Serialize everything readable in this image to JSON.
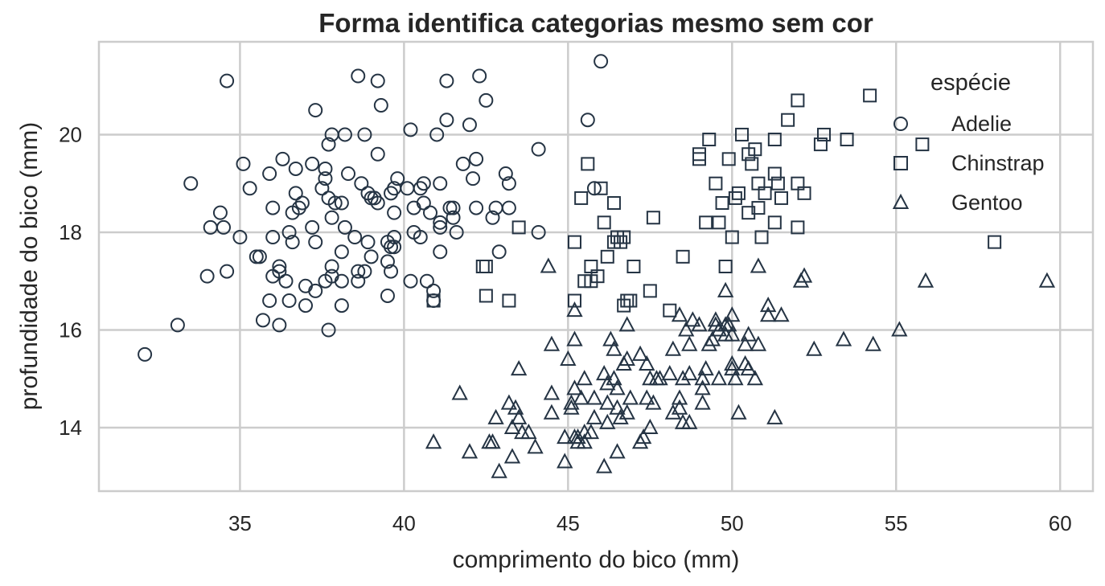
{
  "chart_data": {
    "type": "scatter",
    "title": "Forma identifica categorias mesmo sem cor",
    "xlabel": "comprimento do bico (mm)",
    "ylabel": "profundidade do bico (mm)",
    "xlim": [
      30.7,
      61.0
    ],
    "ylim": [
      12.7,
      21.9
    ],
    "xticks": [
      35,
      40,
      45,
      50,
      55,
      60
    ],
    "yticks": [
      14,
      16,
      18,
      20
    ],
    "grid": true,
    "legend": {
      "title": "espécie",
      "placement": "top-right"
    },
    "marker_color": "#253444",
    "series": [
      {
        "name": "Adelie",
        "marker": "circle",
        "points": [
          [
            32.1,
            15.5
          ],
          [
            33.1,
            16.1
          ],
          [
            33.5,
            19.0
          ],
          [
            34.0,
            17.1
          ],
          [
            34.1,
            18.1
          ],
          [
            34.4,
            18.4
          ],
          [
            34.5,
            18.1
          ],
          [
            34.6,
            21.1
          ],
          [
            34.6,
            17.2
          ],
          [
            35.0,
            17.9
          ],
          [
            35.1,
            19.4
          ],
          [
            35.3,
            18.9
          ],
          [
            35.5,
            17.5
          ],
          [
            35.6,
            17.5
          ],
          [
            35.7,
            16.2
          ],
          [
            35.9,
            16.6
          ],
          [
            35.9,
            19.2
          ],
          [
            36.0,
            17.9
          ],
          [
            36.0,
            17.1
          ],
          [
            36.0,
            18.5
          ],
          [
            36.2,
            17.2
          ],
          [
            36.2,
            17.3
          ],
          [
            36.2,
            16.1
          ],
          [
            36.3,
            19.5
          ],
          [
            36.4,
            17.0
          ],
          [
            36.5,
            16.6
          ],
          [
            36.5,
            18.0
          ],
          [
            36.6,
            17.8
          ],
          [
            36.6,
            18.4
          ],
          [
            36.7,
            19.3
          ],
          [
            36.7,
            18.8
          ],
          [
            36.8,
            18.5
          ],
          [
            36.9,
            18.6
          ],
          [
            37.0,
            16.9
          ],
          [
            37.0,
            16.5
          ],
          [
            37.2,
            18.1
          ],
          [
            37.2,
            19.4
          ],
          [
            37.3,
            17.8
          ],
          [
            37.3,
            16.8
          ],
          [
            37.3,
            20.5
          ],
          [
            37.5,
            18.9
          ],
          [
            37.6,
            19.1
          ],
          [
            37.6,
            17.0
          ],
          [
            37.6,
            19.3
          ],
          [
            37.7,
            18.7
          ],
          [
            37.7,
            19.8
          ],
          [
            37.7,
            16.0
          ],
          [
            37.8,
            17.1
          ],
          [
            37.8,
            17.3
          ],
          [
            37.8,
            18.3
          ],
          [
            37.8,
            20.0
          ],
          [
            37.9,
            18.6
          ],
          [
            38.1,
            18.6
          ],
          [
            38.1,
            17.0
          ],
          [
            38.1,
            16.5
          ],
          [
            38.1,
            17.6
          ],
          [
            38.2,
            18.1
          ],
          [
            38.2,
            20.0
          ],
          [
            38.3,
            19.2
          ],
          [
            38.5,
            17.9
          ],
          [
            38.6,
            21.2
          ],
          [
            38.6,
            17.2
          ],
          [
            38.6,
            17.0
          ],
          [
            38.7,
            19.0
          ],
          [
            38.8,
            17.2
          ],
          [
            38.8,
            20.0
          ],
          [
            38.9,
            18.8
          ],
          [
            38.9,
            17.8
          ],
          [
            39.0,
            17.5
          ],
          [
            39.0,
            18.7
          ],
          [
            39.1,
            18.7
          ],
          [
            39.2,
            18.6
          ],
          [
            39.2,
            21.1
          ],
          [
            39.2,
            19.6
          ],
          [
            39.3,
            20.6
          ],
          [
            39.5,
            16.7
          ],
          [
            39.5,
            17.4
          ],
          [
            39.5,
            17.8
          ],
          [
            39.6,
            17.7
          ],
          [
            39.6,
            18.8
          ],
          [
            39.6,
            17.2
          ],
          [
            39.7,
            18.4
          ],
          [
            39.7,
            17.7
          ],
          [
            39.7,
            18.9
          ],
          [
            39.7,
            17.9
          ],
          [
            39.8,
            19.1
          ],
          [
            40.1,
            18.9
          ],
          [
            40.2,
            17.0
          ],
          [
            40.2,
            20.1
          ],
          [
            40.3,
            18.0
          ],
          [
            40.3,
            18.5
          ],
          [
            40.5,
            17.9
          ],
          [
            40.5,
            18.9
          ],
          [
            40.6,
            18.6
          ],
          [
            40.6,
            19.0
          ],
          [
            40.7,
            17.0
          ],
          [
            40.8,
            18.4
          ],
          [
            40.9,
            16.6
          ],
          [
            40.9,
            16.8
          ],
          [
            41.0,
            20.0
          ],
          [
            41.1,
            17.6
          ],
          [
            41.1,
            18.2
          ],
          [
            41.1,
            19.0
          ],
          [
            41.1,
            18.1
          ],
          [
            41.3,
            20.3
          ],
          [
            41.3,
            21.1
          ],
          [
            41.4,
            18.5
          ],
          [
            41.5,
            18.3
          ],
          [
            41.5,
            18.5
          ],
          [
            41.6,
            18.0
          ],
          [
            41.8,
            19.4
          ],
          [
            42.0,
            20.2
          ],
          [
            42.1,
            19.1
          ],
          [
            42.2,
            18.5
          ],
          [
            42.2,
            19.5
          ],
          [
            42.3,
            21.2
          ],
          [
            42.5,
            20.7
          ],
          [
            42.7,
            18.3
          ],
          [
            42.8,
            18.5
          ],
          [
            42.9,
            17.6
          ],
          [
            43.1,
            19.2
          ],
          [
            43.2,
            18.5
          ],
          [
            43.2,
            19.0
          ],
          [
            44.1,
            18.0
          ],
          [
            44.1,
            19.7
          ],
          [
            45.6,
            20.3
          ],
          [
            45.8,
            18.9
          ],
          [
            46.0,
            21.5
          ]
        ]
      },
      {
        "name": "Chinstrap",
        "marker": "square",
        "points": [
          [
            40.9,
            16.6
          ],
          [
            42.4,
            17.3
          ],
          [
            42.5,
            16.7
          ],
          [
            42.5,
            17.3
          ],
          [
            43.2,
            16.6
          ],
          [
            43.5,
            18.1
          ],
          [
            45.2,
            17.8
          ],
          [
            45.2,
            16.6
          ],
          [
            45.4,
            18.7
          ],
          [
            45.5,
            17.0
          ],
          [
            45.6,
            19.4
          ],
          [
            45.7,
            17.0
          ],
          [
            45.7,
            17.3
          ],
          [
            45.9,
            17.1
          ],
          [
            46.0,
            18.9
          ],
          [
            46.1,
            18.2
          ],
          [
            46.2,
            17.5
          ],
          [
            46.4,
            18.6
          ],
          [
            46.4,
            17.8
          ],
          [
            46.5,
            17.9
          ],
          [
            46.6,
            17.8
          ],
          [
            46.7,
            17.9
          ],
          [
            46.7,
            16.5
          ],
          [
            46.8,
            16.6
          ],
          [
            46.9,
            16.6
          ],
          [
            47.0,
            17.3
          ],
          [
            47.5,
            16.8
          ],
          [
            47.6,
            18.3
          ],
          [
            48.1,
            16.4
          ],
          [
            48.5,
            17.5
          ],
          [
            49.0,
            19.5
          ],
          [
            49.0,
            19.6
          ],
          [
            49.2,
            18.2
          ],
          [
            49.3,
            19.9
          ],
          [
            49.5,
            19.0
          ],
          [
            49.6,
            18.2
          ],
          [
            49.7,
            18.6
          ],
          [
            49.8,
            17.3
          ],
          [
            49.9,
            19.5
          ],
          [
            50.0,
            17.9
          ],
          [
            50.1,
            18.7
          ],
          [
            50.2,
            18.8
          ],
          [
            50.3,
            20.0
          ],
          [
            50.5,
            18.4
          ],
          [
            50.5,
            19.6
          ],
          [
            50.6,
            19.4
          ],
          [
            50.7,
            19.7
          ],
          [
            50.8,
            18.5
          ],
          [
            50.8,
            19.0
          ],
          [
            50.9,
            17.9
          ],
          [
            51.0,
            18.8
          ],
          [
            51.3,
            19.2
          ],
          [
            51.3,
            18.2
          ],
          [
            51.3,
            19.9
          ],
          [
            51.4,
            19.0
          ],
          [
            51.5,
            18.7
          ],
          [
            51.7,
            20.3
          ],
          [
            52.0,
            18.1
          ],
          [
            52.0,
            19.0
          ],
          [
            52.0,
            20.7
          ],
          [
            52.2,
            18.8
          ],
          [
            52.7,
            19.8
          ],
          [
            52.8,
            20.0
          ],
          [
            53.5,
            19.9
          ],
          [
            54.2,
            20.8
          ],
          [
            55.8,
            19.8
          ],
          [
            58.0,
            17.8
          ]
        ]
      },
      {
        "name": "Gentoo",
        "marker": "triangle",
        "points": [
          [
            40.9,
            13.7
          ],
          [
            41.7,
            14.7
          ],
          [
            42.0,
            13.5
          ],
          [
            42.6,
            13.7
          ],
          [
            42.7,
            13.7
          ],
          [
            42.8,
            14.2
          ],
          [
            42.9,
            13.1
          ],
          [
            43.2,
            14.5
          ],
          [
            43.3,
            13.4
          ],
          [
            43.3,
            14.0
          ],
          [
            43.4,
            14.4
          ],
          [
            43.5,
            14.2
          ],
          [
            43.5,
            15.2
          ],
          [
            43.6,
            13.9
          ],
          [
            43.8,
            13.9
          ],
          [
            44.0,
            13.6
          ],
          [
            44.4,
            17.3
          ],
          [
            44.5,
            14.3
          ],
          [
            44.5,
            14.7
          ],
          [
            44.5,
            15.7
          ],
          [
            44.9,
            13.3
          ],
          [
            44.9,
            13.8
          ],
          [
            45.0,
            15.4
          ],
          [
            45.1,
            14.4
          ],
          [
            45.1,
            14.5
          ],
          [
            45.2,
            13.8
          ],
          [
            45.2,
            14.8
          ],
          [
            45.2,
            15.8
          ],
          [
            45.2,
            16.4
          ],
          [
            45.3,
            13.7
          ],
          [
            45.3,
            13.8
          ],
          [
            45.4,
            14.6
          ],
          [
            45.5,
            13.7
          ],
          [
            45.5,
            13.9
          ],
          [
            45.5,
            15.0
          ],
          [
            45.7,
            13.9
          ],
          [
            45.8,
            14.2
          ],
          [
            45.8,
            14.6
          ],
          [
            46.1,
            13.2
          ],
          [
            46.1,
            15.1
          ],
          [
            46.2,
            14.1
          ],
          [
            46.2,
            14.5
          ],
          [
            46.2,
            14.9
          ],
          [
            46.3,
            15.8
          ],
          [
            46.4,
            15.0
          ],
          [
            46.4,
            15.6
          ],
          [
            46.5,
            13.5
          ],
          [
            46.5,
            14.4
          ],
          [
            46.5,
            14.8
          ],
          [
            46.6,
            14.2
          ],
          [
            46.7,
            15.3
          ],
          [
            46.8,
            14.3
          ],
          [
            46.8,
            15.4
          ],
          [
            46.8,
            16.1
          ],
          [
            46.9,
            14.6
          ],
          [
            47.2,
            13.7
          ],
          [
            47.2,
            15.5
          ],
          [
            47.3,
            13.8
          ],
          [
            47.4,
            14.6
          ],
          [
            47.4,
            15.3
          ],
          [
            47.5,
            14.0
          ],
          [
            47.5,
            15.0
          ],
          [
            47.6,
            14.5
          ],
          [
            47.7,
            15.0
          ],
          [
            47.8,
            15.0
          ],
          [
            48.1,
            15.1
          ],
          [
            48.2,
            14.3
          ],
          [
            48.2,
            15.6
          ],
          [
            48.4,
            14.4
          ],
          [
            48.4,
            14.6
          ],
          [
            48.4,
            16.3
          ],
          [
            48.5,
            14.1
          ],
          [
            48.5,
            15.0
          ],
          [
            48.6,
            16.0
          ],
          [
            48.7,
            14.1
          ],
          [
            48.7,
            15.1
          ],
          [
            48.7,
            15.7
          ],
          [
            48.8,
            16.2
          ],
          [
            49.0,
            16.1
          ],
          [
            49.1,
            14.5
          ],
          [
            49.1,
            14.8
          ],
          [
            49.1,
            15.0
          ],
          [
            49.2,
            15.2
          ],
          [
            49.3,
            15.7
          ],
          [
            49.4,
            15.8
          ],
          [
            49.5,
            16.1
          ],
          [
            49.5,
            16.2
          ],
          [
            49.6,
            15.0
          ],
          [
            49.6,
            16.0
          ],
          [
            49.8,
            15.9
          ],
          [
            49.8,
            16.1
          ],
          [
            49.8,
            16.8
          ],
          [
            49.9,
            16.1
          ],
          [
            50.0,
            15.2
          ],
          [
            50.0,
            15.3
          ],
          [
            50.0,
            15.9
          ],
          [
            50.0,
            16.3
          ],
          [
            50.1,
            15.0
          ],
          [
            50.2,
            14.3
          ],
          [
            50.4,
            15.3
          ],
          [
            50.4,
            15.7
          ],
          [
            50.5,
            15.2
          ],
          [
            50.5,
            15.9
          ],
          [
            50.7,
            15.0
          ],
          [
            50.8,
            15.7
          ],
          [
            50.8,
            17.3
          ],
          [
            51.1,
            16.3
          ],
          [
            51.1,
            16.5
          ],
          [
            51.3,
            14.2
          ],
          [
            51.5,
            16.3
          ],
          [
            52.1,
            17.0
          ],
          [
            52.2,
            17.1
          ],
          [
            52.5,
            15.6
          ],
          [
            53.4,
            15.8
          ],
          [
            54.3,
            15.7
          ],
          [
            55.1,
            16.0
          ],
          [
            55.9,
            17.0
          ],
          [
            59.6,
            17.0
          ]
        ]
      }
    ]
  }
}
